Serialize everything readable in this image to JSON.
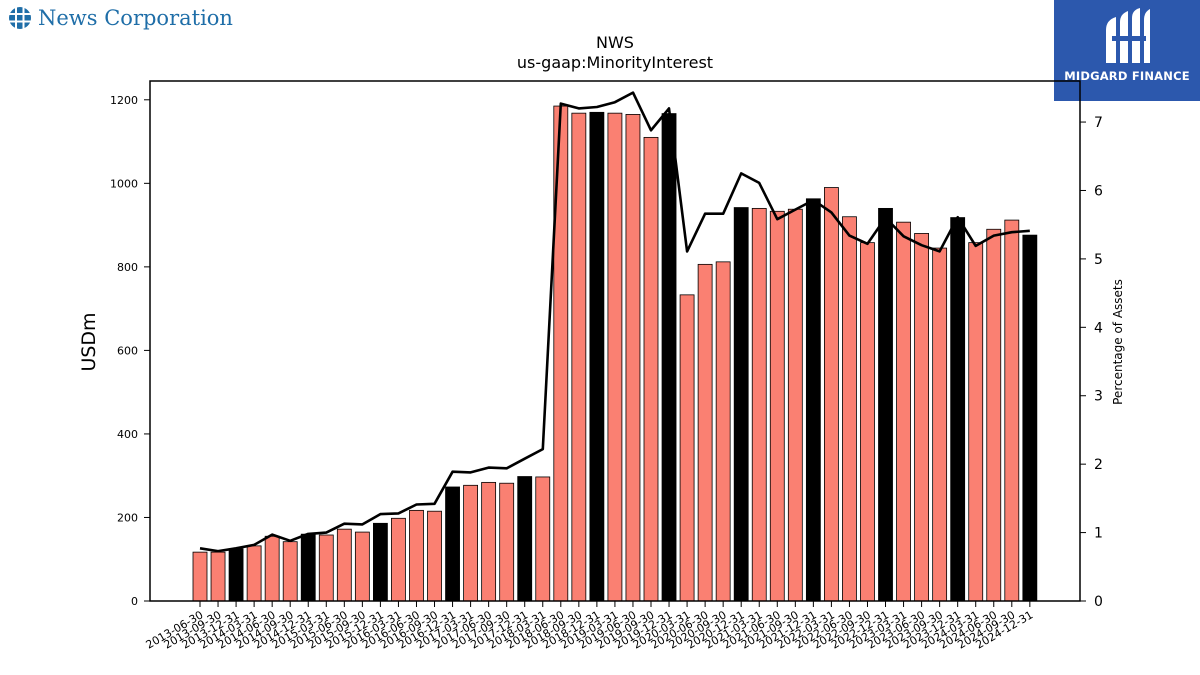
{
  "brand": {
    "name": "News Corporation",
    "partner": "MIDGARD FINANCE"
  },
  "colors": {
    "bar": "#fa8072",
    "bar_highlight": "#000000",
    "line": "#000000",
    "partner_bg": "#2c58ad",
    "brand_text": "#1f6ea8"
  },
  "chart_data": {
    "type": "bar",
    "title": "NWS",
    "subtitle": "us-gaap:MinorityInterest",
    "ylabel": "USDm",
    "y2label": "Percentage of Assets",
    "ylim": [
      0,
      1245
    ],
    "y2lim": [
      0,
      7.6
    ],
    "yticks": [
      0,
      200,
      400,
      600,
      800,
      1000,
      1200
    ],
    "y2ticks": [
      0,
      1,
      2,
      3,
      4,
      5,
      6,
      7
    ],
    "grid": false,
    "categories": [
      "2013-06-30",
      "2013-09-30",
      "2013-12-31",
      "2014-03-31",
      "2014-06-30",
      "2014-09-30",
      "2014-12-31",
      "2015-03-31",
      "2015-06-30",
      "2015-09-30",
      "2015-12-31",
      "2016-03-31",
      "2016-06-30",
      "2016-09-30",
      "2016-12-31",
      "2017-03-31",
      "2017-06-30",
      "2017-09-30",
      "2017-12-31",
      "2018-03-31",
      "2018-06-30",
      "2018-09-30",
      "2018-12-31",
      "2019-03-31",
      "2019-06-30",
      "2019-09-30",
      "2019-12-31",
      "2020-03-31",
      "2020-06-30",
      "2020-09-30",
      "2020-12-31",
      "2021-03-31",
      "2021-06-30",
      "2021-09-30",
      "2021-12-31",
      "2022-03-31",
      "2022-06-30",
      "2022-09-30",
      "2022-12-31",
      "2023-03-31",
      "2023-06-30",
      "2023-09-30",
      "2023-12-31",
      "2024-03-31",
      "2024-06-30",
      "2024-09-30",
      "2024-12-31"
    ],
    "highlight": [
      false,
      false,
      true,
      false,
      false,
      false,
      true,
      false,
      false,
      false,
      true,
      false,
      false,
      false,
      true,
      false,
      false,
      false,
      true,
      false,
      false,
      false,
      true,
      false,
      false,
      false,
      true,
      false,
      false,
      false,
      true,
      false,
      false,
      false,
      true,
      false,
      false,
      false,
      true,
      false,
      false,
      false,
      true,
      false,
      false,
      false,
      true
    ],
    "series": [
      {
        "name": "",
        "type": "bar",
        "axis": "left",
        "values": [
          117,
          117,
          125,
          132,
          155,
          142,
          160,
          158,
          172,
          165,
          186,
          198,
          217,
          215,
          273,
          277,
          284,
          282,
          298,
          297,
          1185,
          1168,
          1170,
          1168,
          1165,
          1110,
          1167,
          733,
          806,
          812,
          942,
          940,
          933,
          938,
          963,
          990,
          920,
          858,
          940,
          907,
          880,
          845,
          918,
          858,
          890,
          912,
          876
        ]
      },
      {
        "name": "",
        "type": "line",
        "axis": "right",
        "values": [
          0.77,
          0.73,
          0.77,
          0.82,
          0.97,
          0.88,
          0.98,
          1.0,
          1.13,
          1.12,
          1.27,
          1.28,
          1.41,
          1.42,
          1.89,
          1.88,
          1.95,
          1.94,
          2.08,
          2.22,
          7.27,
          7.2,
          7.22,
          7.29,
          7.43,
          6.88,
          7.2,
          5.11,
          5.66,
          5.66,
          6.25,
          6.11,
          5.58,
          5.72,
          5.86,
          5.68,
          5.34,
          5.22,
          5.6,
          5.33,
          5.2,
          5.11,
          5.61,
          5.19,
          5.34,
          5.39,
          5.41
        ]
      }
    ]
  }
}
